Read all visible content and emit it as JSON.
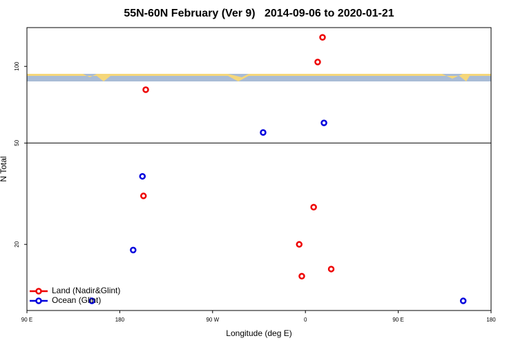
{
  "chart_data": {
    "type": "scatter",
    "title": "55N-60N February (Ver 9)   2014-09-06 to 2020-01-21",
    "x_label": "Longitude (deg E)",
    "y_label": "N Total",
    "xlim": [
      90,
      540
    ],
    "ylim": [
      11,
      142
    ],
    "y_scale": "log",
    "xticks": [
      {
        "value": 90,
        "label": "90 E"
      },
      {
        "value": 180,
        "label": "180"
      },
      {
        "value": 270,
        "label": "90 W"
      },
      {
        "value": 360,
        "label": "0"
      },
      {
        "value": 450,
        "label": "90 E"
      },
      {
        "value": 540,
        "label": "180"
      }
    ],
    "yticks": [
      20,
      50,
      100
    ],
    "reference_line": 50,
    "legend": "bottom left",
    "series": [
      {
        "name": "Land (Nadir&Glint)",
        "color": "#ee0000",
        "x": [
          376.6,
          371.9,
          205.2,
          203,
          368,
          354,
          385,
          356.5
        ],
        "values": [
          130,
          104,
          81,
          31,
          28,
          20,
          16,
          15
        ]
      },
      {
        "name": "Ocean (Glint)",
        "color": "#0000dd",
        "x": [
          378,
          319,
          202,
          193,
          153,
          513
        ],
        "values": [
          60,
          55,
          37,
          19,
          12,
          12
        ]
      }
    ]
  }
}
